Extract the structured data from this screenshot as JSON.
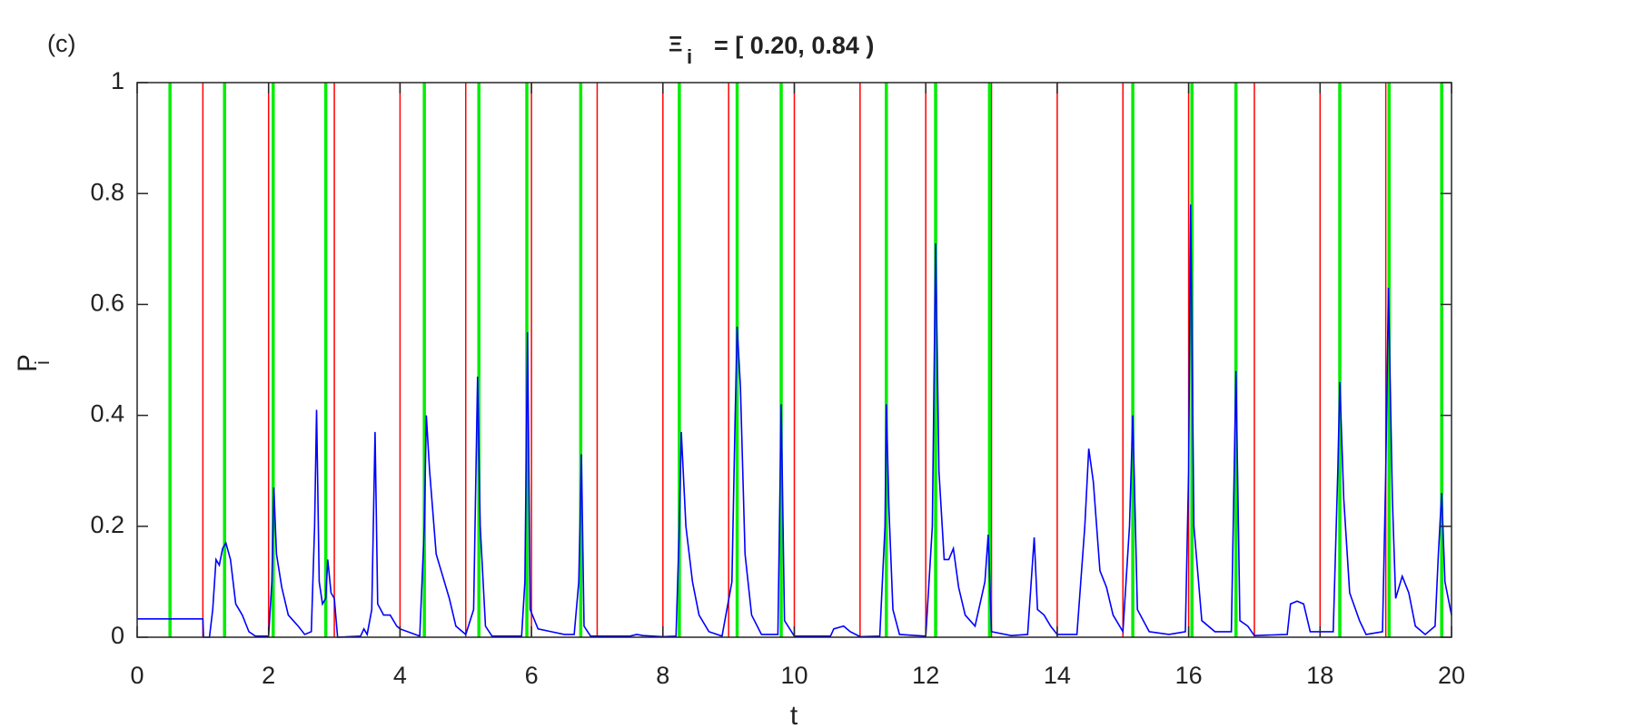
{
  "chart_data": {
    "type": "line",
    "panel_label": "(c)",
    "title_symbol": "Ξ",
    "title_subscript": "i",
    "title_rest": "= [ 0.20, 0.84 )",
    "xlabel": "t",
    "ylabel": "P",
    "ylabel_subscript": "i",
    "xlim": [
      0,
      20
    ],
    "ylim": [
      0,
      1
    ],
    "xticks": [
      0,
      2,
      4,
      6,
      8,
      10,
      12,
      14,
      16,
      18,
      20
    ],
    "yticks": [
      0,
      0.2,
      0.4,
      0.6,
      0.8,
      1
    ],
    "red_lines": {
      "color": "#ff0000",
      "x": [
        1,
        2,
        3,
        4,
        5,
        6,
        7,
        8,
        9,
        10,
        11,
        12,
        13,
        14,
        15,
        16,
        17,
        18,
        19
      ]
    },
    "green_lines": {
      "color": "#00ee00",
      "x": [
        0.5,
        1.33,
        2.07,
        2.87,
        4.37,
        5.2,
        5.93,
        6.75,
        8.25,
        9.13,
        9.8,
        11.4,
        12.15,
        12.97,
        15.15,
        16.05,
        16.72,
        18.3,
        19.05,
        19.85
      ]
    },
    "series": [
      {
        "color": "#0000ff",
        "x": [
          0,
          1,
          1.01,
          1.1,
          1.15,
          1.2,
          1.25,
          1.3,
          1.35,
          1.42,
          1.5,
          1.6,
          1.7,
          1.8,
          2.0,
          2.05,
          2.08,
          2.12,
          2.2,
          2.3,
          2.45,
          2.55,
          2.65,
          2.7,
          2.73,
          2.77,
          2.82,
          2.87,
          2.9,
          2.95,
          3.0,
          3.05,
          3.4,
          3.45,
          3.5,
          3.57,
          3.62,
          3.66,
          3.75,
          3.85,
          3.95,
          4.0,
          4.3,
          4.37,
          4.4,
          4.45,
          4.55,
          4.65,
          4.75,
          4.85,
          5.0,
          5.12,
          5.18,
          5.22,
          5.3,
          5.4,
          5.85,
          5.9,
          5.94,
          5.98,
          6.1,
          6.3,
          6.5,
          6.65,
          6.72,
          6.76,
          6.8,
          6.9,
          7.5,
          7.6,
          7.7,
          8.0,
          8.2,
          8.25,
          8.28,
          8.35,
          8.45,
          8.55,
          8.7,
          8.9,
          9.05,
          9.1,
          9.13,
          9.18,
          9.25,
          9.35,
          9.5,
          9.75,
          9.8,
          9.85,
          10.0,
          10.55,
          10.6,
          10.75,
          10.85,
          11.0,
          11.3,
          11.38,
          11.4,
          11.44,
          11.5,
          11.6,
          12.0,
          12.1,
          12.15,
          12.2,
          12.28,
          12.35,
          12.42,
          12.5,
          12.6,
          12.75,
          12.9,
          12.95,
          13.0,
          13.3,
          13.55,
          13.65,
          13.7,
          13.8,
          13.9,
          14.0,
          14.3,
          14.42,
          14.48,
          14.55,
          14.65,
          14.75,
          14.85,
          15.0,
          15.1,
          15.15,
          15.22,
          15.4,
          15.7,
          15.95,
          16.0,
          16.03,
          16.08,
          16.2,
          16.4,
          16.65,
          16.72,
          16.78,
          16.9,
          17.0,
          17.5,
          17.55,
          17.65,
          17.75,
          17.85,
          18.2,
          18.27,
          18.3,
          18.36,
          18.45,
          18.6,
          18.7,
          18.95,
          19.0,
          19.04,
          19.1,
          19.15,
          19.25,
          19.35,
          19.45,
          19.6,
          19.75,
          19.8,
          19.85,
          19.9,
          20
        ],
        "values": [
          0.033,
          0.033,
          0,
          0,
          0.05,
          0.14,
          0.13,
          0.16,
          0.17,
          0.14,
          0.06,
          0.04,
          0.01,
          0.002,
          0.002,
          0.1,
          0.27,
          0.15,
          0.09,
          0.04,
          0.02,
          0.005,
          0.01,
          0.2,
          0.41,
          0.1,
          0.06,
          0.07,
          0.14,
          0.08,
          0.07,
          0,
          0.002,
          0.015,
          0.005,
          0.05,
          0.37,
          0.06,
          0.04,
          0.04,
          0.02,
          0.015,
          0.002,
          0.2,
          0.4,
          0.3,
          0.15,
          0.11,
          0.07,
          0.02,
          0.005,
          0.05,
          0.47,
          0.2,
          0.02,
          0.002,
          0.002,
          0.1,
          0.55,
          0.05,
          0.015,
          0.01,
          0.005,
          0.005,
          0.1,
          0.33,
          0.02,
          0.002,
          0.002,
          0.005,
          0.003,
          0.001,
          0.002,
          0.2,
          0.37,
          0.2,
          0.1,
          0.04,
          0.01,
          0.002,
          0.1,
          0.4,
          0.56,
          0.45,
          0.15,
          0.04,
          0.005,
          0.005,
          0.42,
          0.03,
          0.002,
          0.002,
          0.015,
          0.02,
          0.01,
          0.001,
          0.002,
          0.2,
          0.42,
          0.23,
          0.05,
          0.005,
          0.002,
          0.2,
          0.71,
          0.3,
          0.14,
          0.14,
          0.16,
          0.09,
          0.04,
          0.02,
          0.1,
          0.185,
          0.01,
          0.003,
          0.005,
          0.18,
          0.05,
          0.04,
          0.02,
          0.005,
          0.005,
          0.2,
          0.34,
          0.28,
          0.12,
          0.09,
          0.04,
          0.01,
          0.2,
          0.4,
          0.05,
          0.01,
          0.005,
          0.01,
          0.3,
          0.78,
          0.2,
          0.03,
          0.01,
          0.01,
          0.48,
          0.03,
          0.02,
          0.003,
          0.005,
          0.06,
          0.065,
          0.06,
          0.01,
          0.01,
          0.3,
          0.46,
          0.25,
          0.08,
          0.03,
          0.005,
          0.01,
          0.3,
          0.63,
          0.25,
          0.07,
          0.11,
          0.08,
          0.02,
          0.005,
          0.02,
          0.15,
          0.26,
          0.1,
          0.04
        ]
      }
    ]
  }
}
